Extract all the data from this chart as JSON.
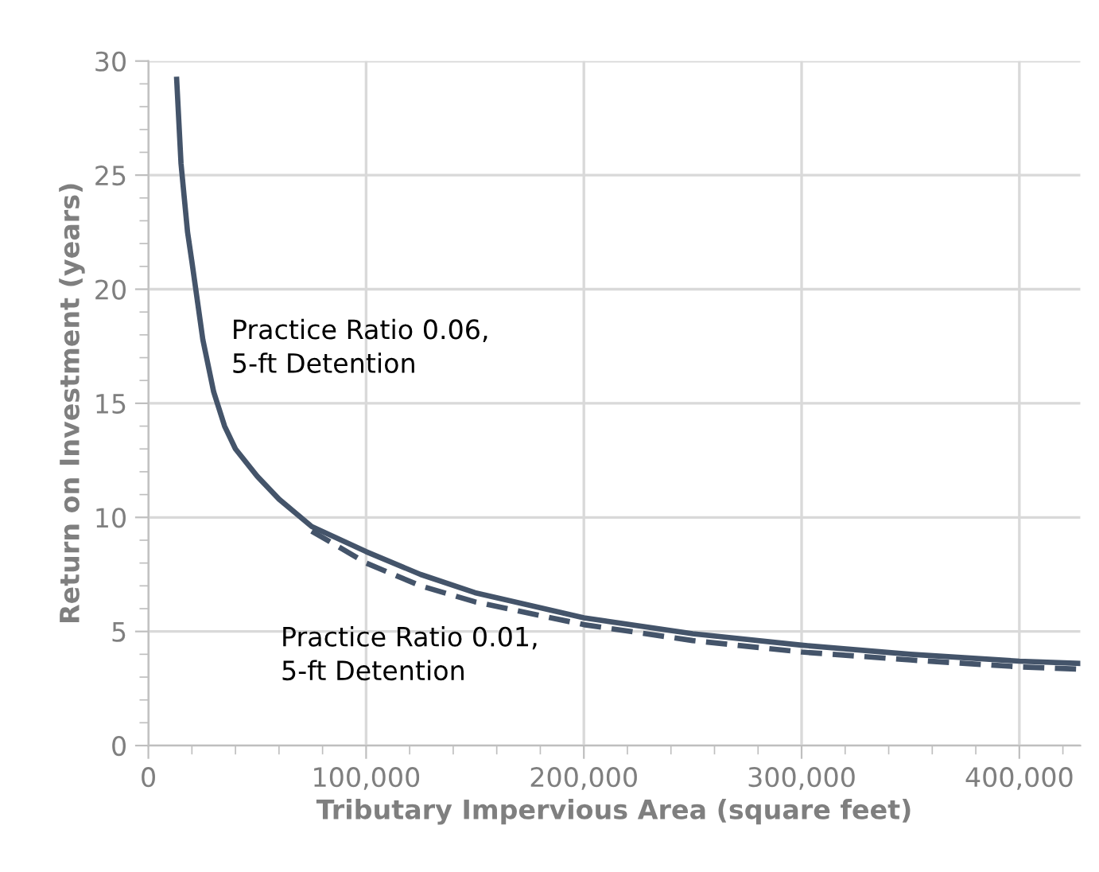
{
  "chart_data": {
    "type": "line",
    "xlabel": "Tributary Impervious Area (square feet)",
    "ylabel": "Return on Investment (years)",
    "xlim": [
      0,
      428000
    ],
    "ylim": [
      0,
      30
    ],
    "xticks": [
      {
        "value": 0,
        "label": "0"
      },
      {
        "value": 100000,
        "label": "100,000"
      },
      {
        "value": 200000,
        "label": "200,000"
      },
      {
        "value": 300000,
        "label": "300,000"
      },
      {
        "value": 400000,
        "label": "400,000"
      }
    ],
    "yticks": [
      0,
      5,
      10,
      15,
      20,
      25,
      30
    ],
    "grid": true,
    "legend": false,
    "marker": "none",
    "series": [
      {
        "color": "#44546a",
        "line_style": "solid",
        "x": [
          13000,
          15000,
          18000,
          20000,
          25000,
          30000,
          35000,
          40000,
          50000,
          60000,
          75000,
          100000,
          125000,
          150000,
          200000,
          250000,
          300000,
          350000,
          400000,
          428000
        ],
        "values": [
          29.2,
          25.5,
          22.5,
          21.2,
          17.8,
          15.5,
          14.0,
          13.0,
          11.8,
          10.8,
          9.6,
          8.5,
          7.5,
          6.7,
          5.6,
          4.9,
          4.4,
          4.0,
          3.7,
          3.6
        ]
      },
      {
        "color": "#44546a",
        "line_style": "dashed",
        "x": [
          75000,
          100000,
          125000,
          150000,
          200000,
          250000,
          300000,
          350000,
          400000,
          428000
        ],
        "values": [
          9.4,
          8.0,
          7.0,
          6.3,
          5.3,
          4.6,
          4.1,
          3.75,
          3.45,
          3.35
        ]
      }
    ],
    "annotations": [
      "Practice Ratio 0.06,\n5-ft Detention",
      "Practice Ratio 0.01,\n5-ft Detention"
    ]
  }
}
